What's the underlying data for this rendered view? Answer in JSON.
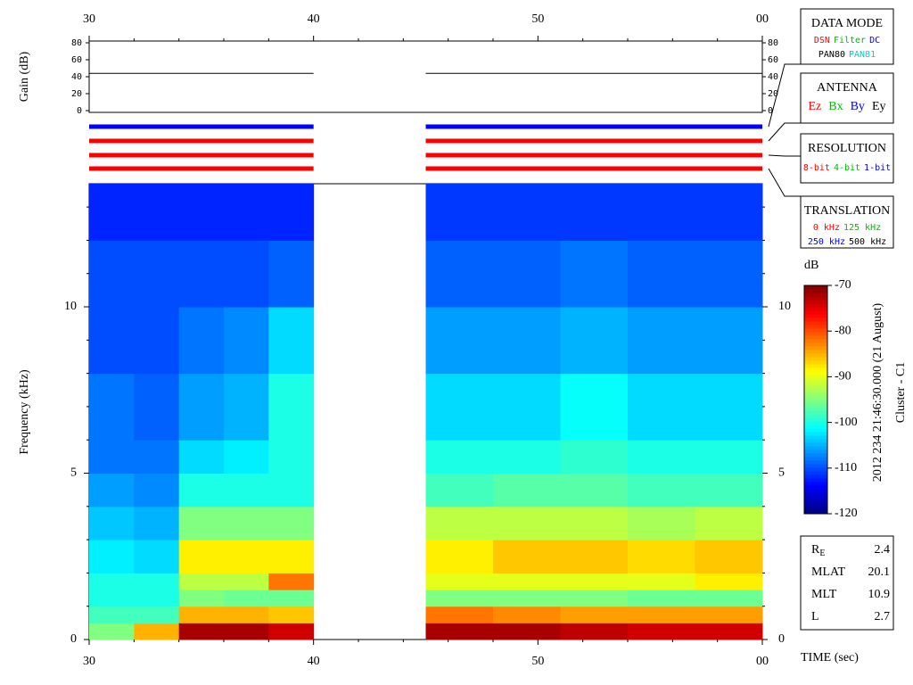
{
  "chart_data": [
    {
      "type": "line",
      "ylabel": "Gain (dB)",
      "color": "#000000",
      "x": [
        30,
        40,
        40,
        45,
        60
      ],
      "values": [
        44,
        44,
        null,
        44,
        44
      ],
      "xlim": [
        30,
        60
      ],
      "xticks": [
        30,
        40,
        50,
        {
          "value": 60,
          "label": "00"
        }
      ],
      "xminorticks": [
        32,
        34,
        36,
        38,
        42,
        44,
        46,
        48,
        52,
        54,
        56,
        58
      ],
      "ylim": [
        0,
        80
      ],
      "yticks": [
        0,
        20,
        40,
        60,
        80
      ]
    },
    {
      "type": "status",
      "xlim": [
        30,
        60
      ],
      "series": [
        {
          "name": "DATA MODE",
          "color": "#0000ff",
          "segments": [
            [
              30,
              40
            ],
            [
              45,
              60
            ]
          ],
          "rows": [
            [
              {
                "label": "DSN",
                "color": "#ff0000"
              },
              {
                "label": "Filter",
                "color": "#00bb00"
              },
              {
                "label": "DC",
                "color": "#0000ff"
              }
            ],
            [
              {
                "label": "PAN80",
                "color": "#000000"
              },
              {
                "label": "PAN81",
                "color": "#00cccc"
              }
            ]
          ]
        },
        {
          "name": "ANTENNA",
          "color": "#ff0000",
          "segments": [
            [
              30,
              40
            ],
            [
              45,
              60
            ]
          ],
          "rows": [
            [
              {
                "label": "Ez",
                "color": "#ff0000"
              },
              {
                "label": "Bx",
                "color": "#00bb00"
              },
              {
                "label": "By",
                "color": "#0000ff"
              },
              {
                "label": "Ey",
                "color": "#000000"
              }
            ]
          ]
        },
        {
          "name": "RESOLUTION",
          "color": "#ff0000",
          "segments": [
            [
              30,
              40
            ],
            [
              45,
              60
            ]
          ],
          "rows": [
            [
              {
                "label": "8-bit",
                "color": "#ff0000"
              },
              {
                "label": "4-bit",
                "color": "#00bb00"
              },
              {
                "label": "1-bit",
                "color": "#0000ff"
              }
            ]
          ]
        },
        {
          "name": "TRANSLATION",
          "color": "#ff0000",
          "segments": [
            [
              30,
              40
            ],
            [
              45,
              60
            ]
          ],
          "rows": [
            [
              {
                "label": "0 kHz",
                "color": "#ff0000"
              },
              {
                "label": "125 kHz",
                "color": "#00bb00"
              }
            ],
            [
              {
                "label": "250 kHz",
                "color": "#0000ff"
              },
              {
                "label": "500 kHz",
                "color": "#000000"
              }
            ]
          ]
        }
      ]
    },
    {
      "type": "heatmap",
      "ylabel": "Frequency (kHz)",
      "xlabel": "TIME (sec)",
      "xlim": [
        30,
        60
      ],
      "xticks": [
        30,
        40,
        50,
        {
          "value": 60,
          "label": "00"
        }
      ],
      "xminorticks": [
        32,
        34,
        36,
        38,
        42,
        44,
        46,
        48,
        52,
        54,
        56,
        58
      ],
      "ylim": [
        0,
        13.7
      ],
      "yticks": [
        0,
        5,
        10
      ],
      "yminorticks": [
        1,
        2,
        3,
        4,
        6,
        7,
        8,
        9,
        11,
        12,
        13
      ],
      "x_edges": [
        30,
        32,
        34,
        36,
        38,
        40,
        45,
        48,
        51,
        54,
        57,
        60
      ],
      "y_edges": [
        0,
        0.5,
        1,
        1.5,
        2,
        3,
        4,
        5,
        6,
        8,
        10,
        12,
        13.7
      ],
      "z": [
        [
          -95,
          -98,
          -100,
          -100,
          -102,
          -104,
          -106,
          -108,
          -108,
          -110,
          -110,
          -112
        ],
        [
          -85,
          -98,
          -100,
          -100,
          -103,
          -105,
          -107,
          -108,
          -109,
          -110,
          -110,
          -112
        ],
        [
          -72,
          -85,
          -95,
          -92,
          -88,
          -95,
          -100,
          -103,
          -106,
          -108,
          -110,
          -112
        ],
        [
          -72,
          -85,
          -96,
          -92,
          -88,
          -95,
          -100,
          -102,
          -105,
          -107,
          -110,
          -112
        ],
        [
          -74,
          -86,
          -96,
          -82,
          -88,
          -95,
          -100,
          -100,
          -100,
          -103,
          -109,
          -112
        ],
        [
          null,
          null,
          null,
          null,
          null,
          null,
          null,
          null,
          null,
          null,
          null,
          null
        ],
        [
          -72,
          -82,
          -95,
          -90,
          -88,
          -92,
          -98,
          -100,
          -103,
          -106,
          -109,
          -111
        ],
        [
          -72,
          -83,
          -95,
          -90,
          -86,
          -92,
          -97,
          -100,
          -103,
          -106,
          -109,
          -111
        ],
        [
          -73,
          -84,
          -95,
          -90,
          -86,
          -92,
          -97,
          -99,
          -101,
          -105,
          -108,
          -111
        ],
        [
          -74,
          -84,
          -96,
          -90,
          -87,
          -93,
          -98,
          -100,
          -103,
          -106,
          -109,
          -111
        ],
        [
          -74,
          -84,
          -96,
          -88,
          -86,
          -92,
          -98,
          -100,
          -103,
          -106,
          -109,
          -111
        ]
      ],
      "zlabel": "dB",
      "zlim": [
        -120,
        -70
      ],
      "zticks": [
        -120,
        -110,
        -100,
        -90,
        -80,
        -70
      ],
      "annotations": [
        "2012 234 21:46:30.000 (21 August)",
        "Cluster - C1"
      ],
      "ephemeris": [
        {
          "label": "R",
          "subscript": "E",
          "value": 2.4
        },
        {
          "label": "MLAT",
          "value": 20.1
        },
        {
          "label": "MLT",
          "value": 10.9
        },
        {
          "label": "L",
          "value": 2.7
        }
      ]
    }
  ]
}
